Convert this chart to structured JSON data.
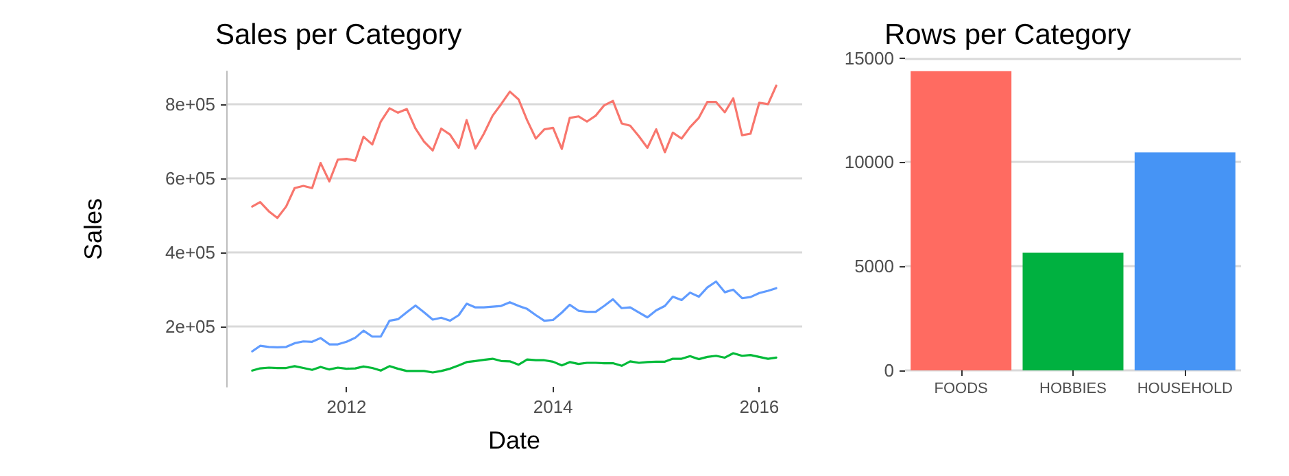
{
  "chart_data": [
    {
      "type": "line",
      "title": "Sales per Category",
      "xlabel": "Date",
      "ylabel": "Sales",
      "x": [
        "2011-02",
        "2011-03",
        "2011-04",
        "2011-05",
        "2011-06",
        "2011-07",
        "2011-08",
        "2011-09",
        "2011-10",
        "2011-11",
        "2011-12",
        "2012-01",
        "2012-02",
        "2012-03",
        "2012-04",
        "2012-05",
        "2012-06",
        "2012-07",
        "2012-08",
        "2012-09",
        "2012-10",
        "2012-11",
        "2012-12",
        "2013-01",
        "2013-02",
        "2013-03",
        "2013-04",
        "2013-05",
        "2013-06",
        "2013-07",
        "2013-08",
        "2013-09",
        "2013-10",
        "2013-11",
        "2013-12",
        "2014-01",
        "2014-02",
        "2014-03",
        "2014-04",
        "2014-05",
        "2014-06",
        "2014-07",
        "2014-08",
        "2014-09",
        "2014-10",
        "2014-11",
        "2014-12",
        "2015-01",
        "2015-02",
        "2015-03",
        "2015-04",
        "2015-05",
        "2015-06",
        "2015-07",
        "2015-08",
        "2015-09",
        "2015-10",
        "2015-11",
        "2015-12",
        "2016-01",
        "2016-02",
        "2016-03"
      ],
      "series": [
        {
          "color": "#f8766d",
          "values": [
            524000,
            536000,
            511000,
            493000,
            524000,
            574000,
            580000,
            574000,
            642000,
            592000,
            651000,
            653000,
            648000,
            713000,
            692000,
            754000,
            790000,
            778000,
            788000,
            735000,
            700000,
            676000,
            735000,
            719000,
            683000,
            758000,
            681000,
            721000,
            770000,
            801000,
            835000,
            814000,
            758000,
            708000,
            733000,
            737000,
            680000,
            764000,
            768000,
            754000,
            770000,
            798000,
            810000,
            749000,
            743000,
            714000,
            683000,
            733000,
            671000,
            724000,
            708000,
            739000,
            764000,
            807000,
            807000,
            779000,
            817000,
            717000,
            721000,
            805000,
            801000,
            851000
          ]
        },
        {
          "color": "#00ba38",
          "values": [
            80000,
            86000,
            88000,
            87000,
            87000,
            92000,
            87000,
            82000,
            90000,
            83000,
            88000,
            85000,
            86000,
            91000,
            87000,
            80000,
            92000,
            85000,
            79000,
            79000,
            79000,
            75000,
            79000,
            85000,
            94000,
            103000,
            106000,
            109000,
            112000,
            106000,
            105000,
            96000,
            110000,
            108000,
            108000,
            104000,
            94000,
            103000,
            98000,
            101000,
            101000,
            100000,
            100000,
            93000,
            105000,
            101000,
            103000,
            104000,
            104000,
            112000,
            112000,
            119000,
            111000,
            117000,
            120000,
            115000,
            127000,
            120000,
            122000,
            117000,
            112000,
            115000
          ]
        },
        {
          "color": "#619cff",
          "values": [
            132000,
            147000,
            144000,
            143000,
            144000,
            154000,
            159000,
            158000,
            168000,
            151000,
            151000,
            158000,
            169000,
            188000,
            172000,
            172000,
            215000,
            219000,
            238000,
            256000,
            238000,
            218000,
            223000,
            215000,
            230000,
            261000,
            251000,
            251000,
            253000,
            255000,
            265000,
            255000,
            247000,
            230000,
            215000,
            217000,
            237000,
            258000,
            242000,
            239000,
            239000,
            255000,
            273000,
            249000,
            251000,
            237000,
            224000,
            243000,
            255000,
            280000,
            271000,
            291000,
            280000,
            305000,
            321000,
            292000,
            299000,
            276000,
            279000,
            290000,
            296000,
            303000
          ]
        }
      ],
      "xlim": [
        "2010-11-01",
        "2016-06-01"
      ],
      "xticks": [
        "2012",
        "2014",
        "2016"
      ],
      "ylim": [
        36000,
        890000
      ],
      "yticks": [
        {
          "value": 200000,
          "label": "2e+05"
        },
        {
          "value": 400000,
          "label": "4e+05"
        },
        {
          "value": 600000,
          "label": "6e+05"
        },
        {
          "value": 800000,
          "label": "8e+05"
        }
      ],
      "grid": "y",
      "marker": "none",
      "line_style": "solid"
    },
    {
      "type": "bar",
      "title": "Rows per Category",
      "categories": [
        "FOODS",
        "HOBBIES",
        "HOUSEHOLD"
      ],
      "values": [
        14370,
        5650,
        10470
      ],
      "colors": [
        "#ff6b61",
        "#00b140",
        "#4694f5"
      ],
      "ylim": [
        0,
        15090
      ],
      "yticks": [
        0,
        5000,
        10000,
        15000
      ],
      "grid": "y"
    }
  ]
}
